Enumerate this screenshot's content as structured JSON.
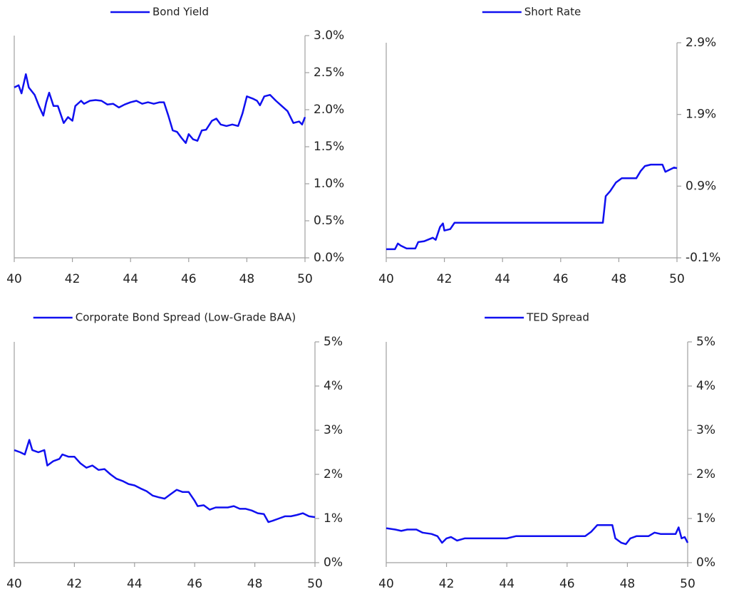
{
  "chart_data": [
    {
      "type": "line",
      "grid": false,
      "xlim": [
        40,
        50
      ],
      "xticks": [
        40,
        42,
        44,
        46,
        48,
        50
      ],
      "ylim": [
        0,
        3
      ],
      "yticks": [
        {
          "value": 0,
          "label": "0.0%"
        },
        {
          "value": 0.5,
          "label": "0.5%"
        },
        {
          "value": 1,
          "label": "1.0%"
        },
        {
          "value": 1.5,
          "label": "1.5%"
        },
        {
          "value": 2,
          "label": "2.0%"
        },
        {
          "value": 2.5,
          "label": "2.5%"
        },
        {
          "value": 3,
          "label": "3.0%"
        }
      ],
      "x": [
        40.0,
        40.15,
        40.25,
        40.4,
        40.5,
        40.7,
        40.85,
        41.0,
        41.1,
        41.2,
        41.35,
        41.5,
        41.7,
        41.85,
        42.0,
        42.1,
        42.3,
        42.4,
        42.6,
        42.8,
        43.0,
        43.2,
        43.4,
        43.6,
        43.8,
        44.0,
        44.2,
        44.4,
        44.6,
        44.8,
        45.0,
        45.15,
        45.3,
        45.45,
        45.6,
        45.75,
        45.9,
        46.0,
        46.15,
        46.3,
        46.45,
        46.6,
        46.8,
        46.95,
        47.1,
        47.3,
        47.5,
        47.7,
        47.85,
        48.0,
        48.2,
        48.35,
        48.45,
        48.6,
        48.8,
        49.0,
        49.2,
        49.4,
        49.6,
        49.8,
        49.9,
        50.0
      ],
      "series": [
        {
          "name": "Bond Yield",
          "color": "#1010f0",
          "values": [
            2.3,
            2.33,
            2.22,
            2.48,
            2.3,
            2.2,
            2.05,
            1.92,
            2.1,
            2.23,
            2.05,
            2.05,
            1.82,
            1.9,
            1.85,
            2.05,
            2.12,
            2.08,
            2.12,
            2.13,
            2.12,
            2.07,
            2.08,
            2.03,
            2.07,
            2.1,
            2.12,
            2.08,
            2.1,
            2.08,
            2.1,
            2.1,
            1.92,
            1.72,
            1.7,
            1.62,
            1.55,
            1.67,
            1.6,
            1.58,
            1.72,
            1.73,
            1.85,
            1.88,
            1.8,
            1.78,
            1.8,
            1.78,
            1.95,
            2.18,
            2.15,
            2.12,
            2.06,
            2.18,
            2.2,
            2.12,
            2.05,
            1.98,
            1.82,
            1.84,
            1.8,
            1.9
          ]
        }
      ]
    },
    {
      "type": "line",
      "grid": false,
      "xlim": [
        40,
        50
      ],
      "xticks": [
        40,
        42,
        44,
        46,
        48,
        50
      ],
      "ylim": [
        -0.1,
        2.9
      ],
      "yticks": [
        {
          "value": -0.1,
          "label": "-0.1%"
        },
        {
          "value": 0.9,
          "label": "0.9%"
        },
        {
          "value": 1.9,
          "label": "1.9%"
        },
        {
          "value": 2.9,
          "label": "2.9%"
        }
      ],
      "x": [
        40.0,
        40.3,
        40.4,
        40.5,
        40.7,
        41.0,
        41.1,
        41.3,
        41.6,
        41.7,
        41.85,
        41.95,
        42.0,
        42.2,
        42.35,
        47.45,
        47.55,
        47.7,
        47.9,
        48.1,
        48.6,
        48.75,
        48.9,
        49.1,
        49.5,
        49.6,
        49.8,
        49.9,
        50.0
      ],
      "series": [
        {
          "name": "Short Rate",
          "color": "#1010f0",
          "values": [
            0.02,
            0.02,
            0.1,
            0.07,
            0.03,
            0.03,
            0.12,
            0.13,
            0.18,
            0.15,
            0.33,
            0.38,
            0.28,
            0.3,
            0.39,
            0.39,
            0.76,
            0.83,
            0.95,
            1.01,
            1.01,
            1.11,
            1.18,
            1.2,
            1.2,
            1.1,
            1.14,
            1.16,
            1.15
          ]
        }
      ]
    },
    {
      "type": "line",
      "grid": false,
      "xlim": [
        40,
        50
      ],
      "xticks": [
        40,
        42,
        44,
        46,
        48,
        50
      ],
      "ylim": [
        0,
        5
      ],
      "yticks": [
        {
          "value": 0,
          "label": "0%"
        },
        {
          "value": 1,
          "label": "1%"
        },
        {
          "value": 2,
          "label": "2%"
        },
        {
          "value": 3,
          "label": "3%"
        },
        {
          "value": 4,
          "label": "4%"
        },
        {
          "value": 5,
          "label": "5%"
        }
      ],
      "x": [
        40.0,
        40.2,
        40.35,
        40.5,
        40.6,
        40.8,
        41.0,
        41.1,
        41.3,
        41.5,
        41.6,
        41.8,
        42.0,
        42.2,
        42.4,
        42.6,
        42.8,
        43.0,
        43.2,
        43.4,
        43.6,
        43.8,
        44.0,
        44.2,
        44.4,
        44.6,
        44.8,
        45.0,
        45.2,
        45.4,
        45.6,
        45.8,
        46.0,
        46.1,
        46.3,
        46.5,
        46.7,
        46.9,
        47.1,
        47.3,
        47.5,
        47.7,
        47.9,
        48.1,
        48.3,
        48.45,
        48.6,
        48.8,
        49.0,
        49.2,
        49.4,
        49.6,
        49.8,
        50.0
      ],
      "series": [
        {
          "name": "Corporate Bond Spread (Low-Grade BAA)",
          "color": "#1010f0",
          "values": [
            2.55,
            2.5,
            2.45,
            2.78,
            2.55,
            2.5,
            2.55,
            2.2,
            2.3,
            2.35,
            2.45,
            2.4,
            2.4,
            2.25,
            2.15,
            2.2,
            2.1,
            2.12,
            2.0,
            1.9,
            1.85,
            1.78,
            1.75,
            1.68,
            1.62,
            1.52,
            1.48,
            1.45,
            1.55,
            1.65,
            1.6,
            1.6,
            1.4,
            1.28,
            1.3,
            1.2,
            1.25,
            1.25,
            1.25,
            1.28,
            1.22,
            1.22,
            1.18,
            1.12,
            1.1,
            0.92,
            0.95,
            1.0,
            1.05,
            1.05,
            1.08,
            1.12,
            1.05,
            1.03
          ]
        }
      ]
    },
    {
      "type": "line",
      "grid": false,
      "xlim": [
        40,
        50
      ],
      "xticks": [
        40,
        42,
        44,
        46,
        48,
        50
      ],
      "ylim": [
        0,
        5
      ],
      "yticks": [
        {
          "value": 0,
          "label": "0%"
        },
        {
          "value": 1,
          "label": "1%"
        },
        {
          "value": 2,
          "label": "2%"
        },
        {
          "value": 3,
          "label": "3%"
        },
        {
          "value": 4,
          "label": "4%"
        },
        {
          "value": 5,
          "label": "5%"
        }
      ],
      "x": [
        40.0,
        40.3,
        40.5,
        40.7,
        41.0,
        41.2,
        41.5,
        41.7,
        41.85,
        42.0,
        42.15,
        42.35,
        42.6,
        43.0,
        44.0,
        44.3,
        45.0,
        46.0,
        46.6,
        46.8,
        47.0,
        47.5,
        47.6,
        47.8,
        47.95,
        48.1,
        48.3,
        48.7,
        48.9,
        49.1,
        49.6,
        49.7,
        49.8,
        49.9,
        50.0
      ],
      "series": [
        {
          "name": "TED Spread",
          "color": "#1010f0",
          "values": [
            0.78,
            0.75,
            0.72,
            0.75,
            0.75,
            0.68,
            0.65,
            0.6,
            0.45,
            0.55,
            0.58,
            0.5,
            0.55,
            0.55,
            0.55,
            0.6,
            0.6,
            0.6,
            0.6,
            0.7,
            0.85,
            0.85,
            0.55,
            0.45,
            0.42,
            0.55,
            0.6,
            0.6,
            0.68,
            0.65,
            0.65,
            0.8,
            0.55,
            0.58,
            0.45
          ]
        }
      ]
    }
  ]
}
